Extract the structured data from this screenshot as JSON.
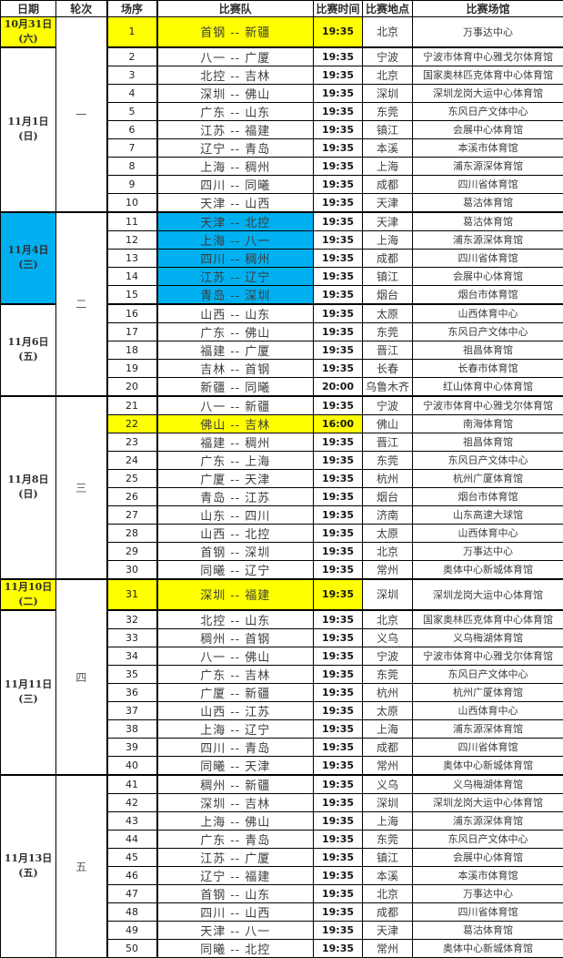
{
  "title": "CBA赛程表",
  "colors": {
    "highlight_yellow": "#FFFF00",
    "highlight_cyan": "#00B0F0",
    "grid": "#000000"
  },
  "columns": [
    "日期",
    "轮次",
    "场序",
    "比赛队",
    "比赛时间",
    "比赛地点",
    "比赛场馆"
  ],
  "date_groups": [
    {
      "date": "10月31日",
      "week": "(六)",
      "from": 1,
      "to": 1,
      "highlight": "y"
    },
    {
      "date": "11月1日",
      "week": "(日)",
      "from": 2,
      "to": 10,
      "highlight": ""
    },
    {
      "date": "11月4日",
      "week": "(三)",
      "from": 11,
      "to": 15,
      "highlight": "c"
    },
    {
      "date": "11月6日",
      "week": "(五)",
      "from": 16,
      "to": 20,
      "highlight": ""
    },
    {
      "date": "11月8日",
      "week": "(日)",
      "from": 21,
      "to": 30,
      "highlight": ""
    },
    {
      "date": "11月10日",
      "week": "(二)",
      "from": 31,
      "to": 31,
      "highlight": "y"
    },
    {
      "date": "11月11日",
      "week": "(三)",
      "from": 32,
      "to": 40,
      "highlight": ""
    },
    {
      "date": "11月13日",
      "week": "(五)",
      "from": 41,
      "to": 50,
      "highlight": ""
    }
  ],
  "rounds": [
    {
      "label": "一",
      "from": 1,
      "to": 10
    },
    {
      "label": "二",
      "from": 11,
      "to": 20
    },
    {
      "label": "三",
      "from": 21,
      "to": 30
    },
    {
      "label": "四",
      "from": 31,
      "to": 40
    },
    {
      "label": "五",
      "from": 41,
      "to": 50
    }
  ],
  "rows": [
    [
      "首钢 -- 新疆",
      "19:35",
      "北京",
      "万事达中心",
      "y"
    ],
    [
      "八一 -- 广厦",
      "19:35",
      "宁波",
      "宁波市体育中心雅戈尔体育馆",
      ""
    ],
    [
      "北控 -- 吉林",
      "19:35",
      "北京",
      "国家奥林匹克体育中心体育馆",
      ""
    ],
    [
      "深圳 -- 佛山",
      "19:35",
      "深圳",
      "深圳龙岗大运中心体育馆",
      ""
    ],
    [
      "广东 -- 山东",
      "19:35",
      "东莞",
      "东风日产文体中心",
      ""
    ],
    [
      "江苏 -- 福建",
      "19:35",
      "镇江",
      "会展中心体育馆",
      ""
    ],
    [
      "辽宁 -- 青岛",
      "19:35",
      "本溪",
      "本溪市体育馆",
      ""
    ],
    [
      "上海 -- 稠州",
      "19:35",
      "上海",
      "浦东源深体育馆",
      ""
    ],
    [
      "四川 -- 同曦",
      "19:35",
      "成都",
      "四川省体育馆",
      ""
    ],
    [
      "天津 -- 山西",
      "19:35",
      "天津",
      "葛沽体育馆",
      ""
    ],
    [
      "天津 -- 北控",
      "19:35",
      "天津",
      "葛沽体育馆",
      "c"
    ],
    [
      "上海 -- 八一",
      "19:35",
      "上海",
      "浦东源深体育馆",
      "c"
    ],
    [
      "四川 -- 稠州",
      "19:35",
      "成都",
      "四川省体育馆",
      "c"
    ],
    [
      "江苏 -- 辽宁",
      "19:35",
      "镇江",
      "会展中心体育馆",
      "c"
    ],
    [
      "青岛 -- 深圳",
      "19:35",
      "烟台",
      "烟台市体育馆",
      "c"
    ],
    [
      "山西 -- 山东",
      "19:35",
      "太原",
      "山西体育中心",
      ""
    ],
    [
      "广东 -- 佛山",
      "19:35",
      "东莞",
      "东风日产文体中心",
      ""
    ],
    [
      "福建 -- 广厦",
      "19:35",
      "晋江",
      "祖昌体育馆",
      ""
    ],
    [
      "吉林 -- 首钢",
      "19:35",
      "长春",
      "长春市体育馆",
      ""
    ],
    [
      "新疆 -- 同曦",
      "20:00",
      "乌鲁木齐",
      "红山体育中心体育馆",
      ""
    ],
    [
      "八一 -- 新疆",
      "19:35",
      "宁波",
      "宁波市体育中心雅戈尔体育馆",
      ""
    ],
    [
      "佛山 -- 吉林",
      "16:00",
      "佛山",
      "南海体育馆",
      "y"
    ],
    [
      "福建 -- 稠州",
      "19:35",
      "晋江",
      "祖昌体育馆",
      ""
    ],
    [
      "广东 -- 上海",
      "19:35",
      "东莞",
      "东风日产文体中心",
      ""
    ],
    [
      "广厦 -- 天津",
      "19:35",
      "杭州",
      "杭州广厦体育馆",
      ""
    ],
    [
      "青岛 -- 江苏",
      "19:35",
      "烟台",
      "烟台市体育馆",
      ""
    ],
    [
      "山东 -- 四川",
      "19:35",
      "济南",
      "山东高速大球馆",
      ""
    ],
    [
      "山西 -- 北控",
      "19:35",
      "太原",
      "山西体育中心",
      ""
    ],
    [
      "首钢 -- 深圳",
      "19:35",
      "北京",
      "万事达中心",
      ""
    ],
    [
      "同曦 -- 辽宁",
      "19:35",
      "常州",
      "奥体中心新城体育馆",
      ""
    ],
    [
      "深圳 -- 福建",
      "19:35",
      "深圳",
      "深圳龙岗大运中心体育馆",
      "y"
    ],
    [
      "北控 -- 山东",
      "19:35",
      "北京",
      "国家奥林匹克体育中心体育馆",
      ""
    ],
    [
      "稠州 -- 首钢",
      "19:35",
      "义乌",
      "义乌梅湖体育馆",
      ""
    ],
    [
      "八一 -- 佛山",
      "19:35",
      "宁波",
      "宁波市体育中心雅戈尔体育馆",
      ""
    ],
    [
      "广东 -- 吉林",
      "19:35",
      "东莞",
      "东风日产文体中心",
      ""
    ],
    [
      "广厦 -- 新疆",
      "19:35",
      "杭州",
      "杭州广厦体育馆",
      ""
    ],
    [
      "山西 -- 江苏",
      "19:35",
      "太原",
      "山西体育中心",
      ""
    ],
    [
      "上海 -- 辽宁",
      "19:35",
      "上海",
      "浦东源深体育馆",
      ""
    ],
    [
      "四川 -- 青岛",
      "19:35",
      "成都",
      "四川省体育馆",
      ""
    ],
    [
      "同曦 -- 天津",
      "19:35",
      "常州",
      "奥体中心新城体育馆",
      ""
    ],
    [
      "稠州 -- 新疆",
      "19:35",
      "义乌",
      "义乌梅湖体育馆",
      ""
    ],
    [
      "深圳 -- 吉林",
      "19:35",
      "深圳",
      "深圳龙岗大运中心体育馆",
      ""
    ],
    [
      "上海 -- 佛山",
      "19:35",
      "上海",
      "浦东源深体育馆",
      ""
    ],
    [
      "广东 -- 青岛",
      "19:35",
      "东莞",
      "东风日产文体中心",
      ""
    ],
    [
      "江苏 -- 广厦",
      "19:35",
      "镇江",
      "会展中心体育馆",
      ""
    ],
    [
      "辽宁 -- 福建",
      "19:35",
      "本溪",
      "本溪市体育馆",
      ""
    ],
    [
      "首钢 -- 山东",
      "19:35",
      "北京",
      "万事达中心",
      ""
    ],
    [
      "四川 -- 山西",
      "19:35",
      "成都",
      "四川省体育馆",
      ""
    ],
    [
      "天津 -- 八一",
      "19:35",
      "天津",
      "葛沽体育馆",
      ""
    ],
    [
      "同曦 -- 北控",
      "19:35",
      "常州",
      "奥体中心新城体育馆",
      ""
    ]
  ]
}
